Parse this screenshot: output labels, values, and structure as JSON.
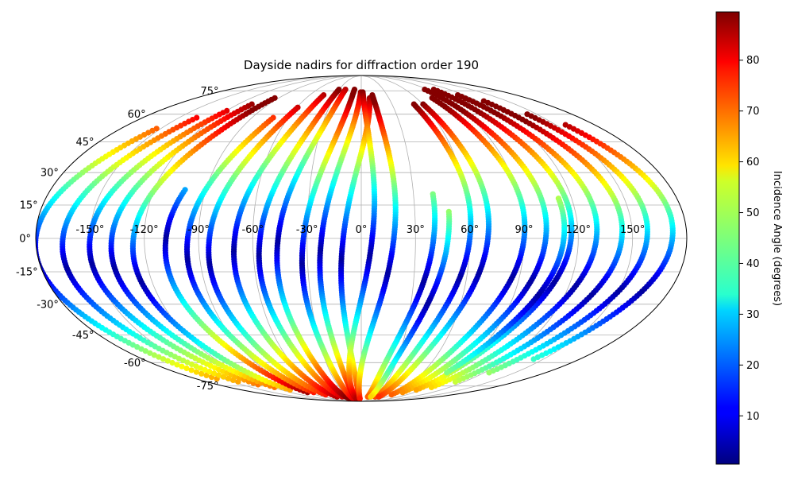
{
  "chart_data": {
    "type": "scatter",
    "projection": "mollweide",
    "title": "Dayside nadirs for diffraction order 190",
    "xlabel": "",
    "ylabel": "",
    "grid": true,
    "xlim": [
      -180,
      180
    ],
    "ylim": [
      -90,
      90
    ],
    "lon_ticks": [
      {
        "value": -150,
        "label": "-150°"
      },
      {
        "value": -120,
        "label": "-120°"
      },
      {
        "value": -90,
        "label": "-90°"
      },
      {
        "value": -60,
        "label": "-60°"
      },
      {
        "value": -30,
        "label": "-30°"
      },
      {
        "value": 0,
        "label": "0°"
      },
      {
        "value": 30,
        "label": "30°"
      },
      {
        "value": 60,
        "label": "60°"
      },
      {
        "value": 90,
        "label": "90°"
      },
      {
        "value": 120,
        "label": "120°"
      },
      {
        "value": 150,
        "label": "150°"
      }
    ],
    "lat_ticks": [
      {
        "value": 75,
        "label": "75°"
      },
      {
        "value": 60,
        "label": "60°"
      },
      {
        "value": 45,
        "label": "45°"
      },
      {
        "value": 30,
        "label": "30°"
      },
      {
        "value": 15,
        "label": "15°"
      },
      {
        "value": 0,
        "label": "0°"
      },
      {
        "value": -15,
        "label": "-15°"
      },
      {
        "value": -30,
        "label": "-30°"
      },
      {
        "value": -45,
        "label": "-45°"
      },
      {
        "value": -60,
        "label": "-60°"
      },
      {
        "value": -75,
        "label": "-75°"
      }
    ],
    "colorbar": {
      "label": "Incidence Angle (degrees)",
      "colormap": "jet",
      "vmin": 0.5,
      "vmax": 89.5,
      "ticks": [
        {
          "value": 10,
          "label": "10"
        },
        {
          "value": 20,
          "label": "20"
        },
        {
          "value": 30,
          "label": "30"
        },
        {
          "value": 40,
          "label": "40"
        },
        {
          "value": 50,
          "label": "50"
        },
        {
          "value": 60,
          "label": "60"
        },
        {
          "value": 70,
          "label": "70"
        },
        {
          "value": 80,
          "label": "80"
        }
      ]
    },
    "tracks": [
      {
        "lon0": -180,
        "lat_start": 52,
        "lat_end": -70,
        "subsolar_lat": -12
      },
      {
        "lon0": -165,
        "lat_start": 58,
        "lat_end": -72,
        "subsolar_lat": -14
      },
      {
        "lon0": -150,
        "lat_start": 62,
        "lat_end": -74,
        "subsolar_lat": -12
      },
      {
        "lon0": -138,
        "lat_start": 66,
        "lat_end": -76,
        "subsolar_lat": -14
      },
      {
        "lon0": -126,
        "lat_start": 70,
        "lat_end": -78,
        "subsolar_lat": -20
      },
      {
        "lon0": -108,
        "lat_start": 22,
        "lat_end": -80,
        "subsolar_lat": 0
      },
      {
        "lon0": -96,
        "lat_start": 58,
        "lat_end": -80,
        "subsolar_lat": -10
      },
      {
        "lon0": -84,
        "lat_start": 64,
        "lat_end": -82,
        "subsolar_lat": -12
      },
      {
        "lon0": -70,
        "lat_start": 72,
        "lat_end": -84,
        "subsolar_lat": -6
      },
      {
        "lon0": -56,
        "lat_start": 76,
        "lat_end": -84,
        "subsolar_lat": -8
      },
      {
        "lon0": -46,
        "lat_start": 76,
        "lat_end": -86,
        "subsolar_lat": -2
      },
      {
        "lon0": -32,
        "lat_start": 76,
        "lat_end": -86,
        "subsolar_lat": -12
      },
      {
        "lon0": -22,
        "lat_start": 74,
        "lat_end": -86,
        "subsolar_lat": -6
      },
      {
        "lon0": -10,
        "lat_start": 70,
        "lat_end": -86,
        "subsolar_lat": -10
      },
      {
        "lon0": 6,
        "lat_start": 74,
        "lat_end": -86,
        "subsolar_lat": -8
      },
      {
        "lon0": 18,
        "lat_start": 72,
        "lat_end": -86,
        "subsolar_lat": -16
      },
      {
        "lon0": 60,
        "lat_start": 66,
        "lat_end": -84,
        "subsolar_lat": -18
      },
      {
        "lon0": 70,
        "lat_start": 66,
        "lat_end": -84,
        "subsolar_lat": -16
      },
      {
        "lon0": 90,
        "lat_start": 70,
        "lat_end": -82,
        "subsolar_lat": -18
      },
      {
        "lon0": 102,
        "lat_start": 76,
        "lat_end": -80,
        "subsolar_lat": -20
      },
      {
        "lon0": 116,
        "lat_start": 76,
        "lat_end": -78,
        "subsolar_lat": -20
      },
      {
        "lon0": 130,
        "lat_start": 72,
        "lat_end": -76,
        "subsolar_lat": -22
      },
      {
        "lon0": 144,
        "lat_start": 68,
        "lat_end": -72,
        "subsolar_lat": -26
      },
      {
        "lon0": 158,
        "lat_start": 60,
        "lat_end": -66,
        "subsolar_lat": -24
      },
      {
        "lon0": 172,
        "lat_start": 54,
        "lat_end": -58,
        "subsolar_lat": -24
      }
    ],
    "short_tracks": [
      {
        "lon0": 40,
        "lat_start": 20,
        "lat_end": -84,
        "subsolar_lat": -20
      },
      {
        "lon0": 48,
        "lat_start": 12,
        "lat_end": -84,
        "subsolar_lat": -30
      },
      {
        "lon0": 112,
        "lat_start": 18,
        "lat_end": -66,
        "subsolar_lat": -26
      }
    ]
  }
}
